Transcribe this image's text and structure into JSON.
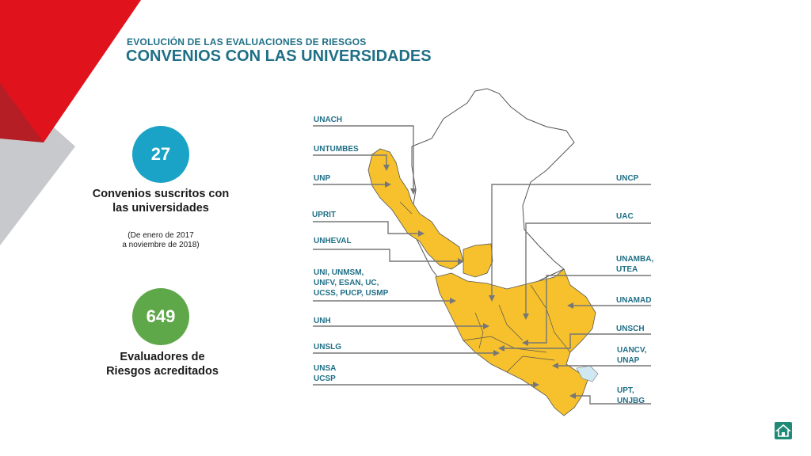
{
  "header": {
    "subtitle": "EVOLUCIÓN DE LAS EVALUACIONES DE RIESGOS",
    "title": "CONVENIOS CON LAS UNIVERSIDADES"
  },
  "stats": [
    {
      "value": "27",
      "label": "Convenios suscritos con las universidades",
      "note": "(De enero de 2017\na noviembre de 2018)",
      "color": "#1aa3c6"
    },
    {
      "value": "649",
      "label": "Evaluadores de Riesgos acreditados",
      "color": "#5fa84a"
    }
  ],
  "map": {
    "left_labels": [
      "UNACH",
      "UNTUMBES",
      "UNP",
      "UPRIT",
      "UNHEVAL",
      "UNI, UNMSM,\nUNFV, ESAN, UC,\nUCSS, PUCP, USMP",
      "UNH",
      "UNSLG",
      "UNSA\nUCSP"
    ],
    "right_labels": [
      "UNCP",
      "UAC",
      "UNAMBA,\nUTEA",
      "UNAMAD",
      "UNSCH",
      "UANCV,\nUNAP",
      "UPT,\nUNJBG"
    ],
    "fill_color": "#f6c12c",
    "label_color": "#1f6f86"
  },
  "nav": {
    "home_icon": "home-icon"
  }
}
